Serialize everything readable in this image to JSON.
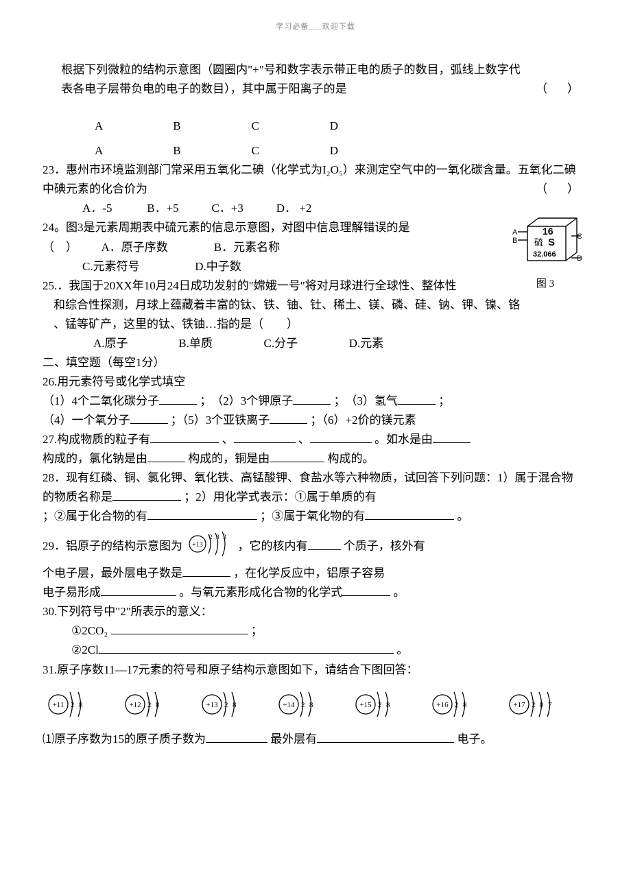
{
  "header": "学习必备___欢迎下载",
  "q22": {
    "line1": "根据下列微粒的结构示意图（圆圈内\"+\"号和数字表示带正电的质子的数目，弧线上数字代",
    "line2": "表各电子层带负电的电子的数目），其中属于阳离子的是",
    "paren": "（　）",
    "labels": {
      "a": "A",
      "b": "B",
      "c": "C",
      "d": "D"
    }
  },
  "q23": {
    "text": "23．惠州市环境监测部门常采用五氧化二碘（化学式为I₂O₅）来测定空气中的一氧化碳含量。五氧化二碘中碘元素的化合价为",
    "paren": "（　）",
    "opts": {
      "a": "A．-5",
      "b": "B．+5",
      "c": "C．+3",
      "d": "D．  +2"
    }
  },
  "q24": {
    "text": "24。图3是元素周期表中硫元素的信息示意图，对图中信息理解错误的是",
    "opts": {
      "a": "A．原子序数",
      "b": "B．元素名称",
      "c": "C.元素符号",
      "d": "D.中子数"
    },
    "paren": "（　）",
    "cube": {
      "a": "A",
      "b": "B",
      "c": "C",
      "d": "D",
      "num": "16",
      "name": "硫",
      "sym": "S",
      "mass": "32.066"
    },
    "caption": "图 3"
  },
  "q25": {
    "line1": "25.．我国于20XX年10月24日成功发射的\"嫦娥一号\"将对月球进行全球性、整体性",
    "line2": "和综合性探测，月球上蕴藏着丰富的钛、铁、铀、钍、稀土、镁、磷、硅、钠、钾、镍、铬",
    "line3": "、锰等矿产，这里的钛、铁铀…指的是（　　）",
    "opts": {
      "a": "A.原子",
      "b": "B.单质",
      "c": "C.分子",
      "d": "D.元素"
    }
  },
  "section2": "二、填空题（每空1分）",
  "q26": {
    "title": "26.用元素符号或化学式填空",
    "p1_a": "（1）4个二氧化碳分子",
    "p1_b": "；　（2）3个钾原子",
    "p1_c": "；　（3）氢气",
    "p1_d": "；",
    "p2_a": "（4）一个氧分子",
    "p2_b": "；（5）3个亚铁离子",
    "p2_c": "；（6）+2价的镁元素"
  },
  "q27": {
    "a": "27.构成物质的粒子有",
    "b": "、",
    "c": "、",
    "d": "。如水是由",
    "e": "构成的，氯化钠是由",
    "f": "构成的，铜是由",
    "g": "构成的。"
  },
  "q28": {
    "a": "28．现有红磷、铜、氯化钾、氧化铁、高锰酸钾、食盐水等六种物质，试回答下列问题：1）属于混合物的物质名称是",
    "b": "；2）用化学式表示：①属于单质的有",
    "c": "；②属于化合物的有",
    "d": "；③属于氧化物的有",
    "e": "。"
  },
  "q29": {
    "a": "29．铝原子的结构示意图为",
    "b": "，它的核内有",
    "c": "个质子，核外有",
    "d": "个电子层，最外层电子数是",
    "e": "，在化学反应中，铝原子容易",
    "f": "电子易形成",
    "g": "。与氧元素形成化合物的化学式",
    "h": "。",
    "nucleus": "+13",
    "shells": "2 8 3"
  },
  "q30": {
    "title": "30.下列符号中\"2\"所表示的意义：",
    "item1_a": "①2CO₂ ",
    "item1_b": "；",
    "item2_a": "②2Cl",
    "item2_b": "。"
  },
  "q31": {
    "title": "31.原子序数11—17元素的符号和原子结构示意图如下，请结合下图回答：",
    "atoms": [
      {
        "nucleus": "+11",
        "shells": "2 8"
      },
      {
        "nucleus": "+12",
        "shells": "2 8"
      },
      {
        "nucleus": "+13",
        "shells": "2 8"
      },
      {
        "nucleus": "+14",
        "shells": "2 8"
      },
      {
        "nucleus": "+15",
        "shells": "2 8"
      },
      {
        "nucleus": "+16",
        "shells": "2 8"
      },
      {
        "nucleus": "+17",
        "shells": "2 8 7"
      }
    ],
    "sub1_a": "⑴原子序数为15的原子质子数为",
    "sub1_b": "最外层有",
    "sub1_c": "电子。"
  }
}
